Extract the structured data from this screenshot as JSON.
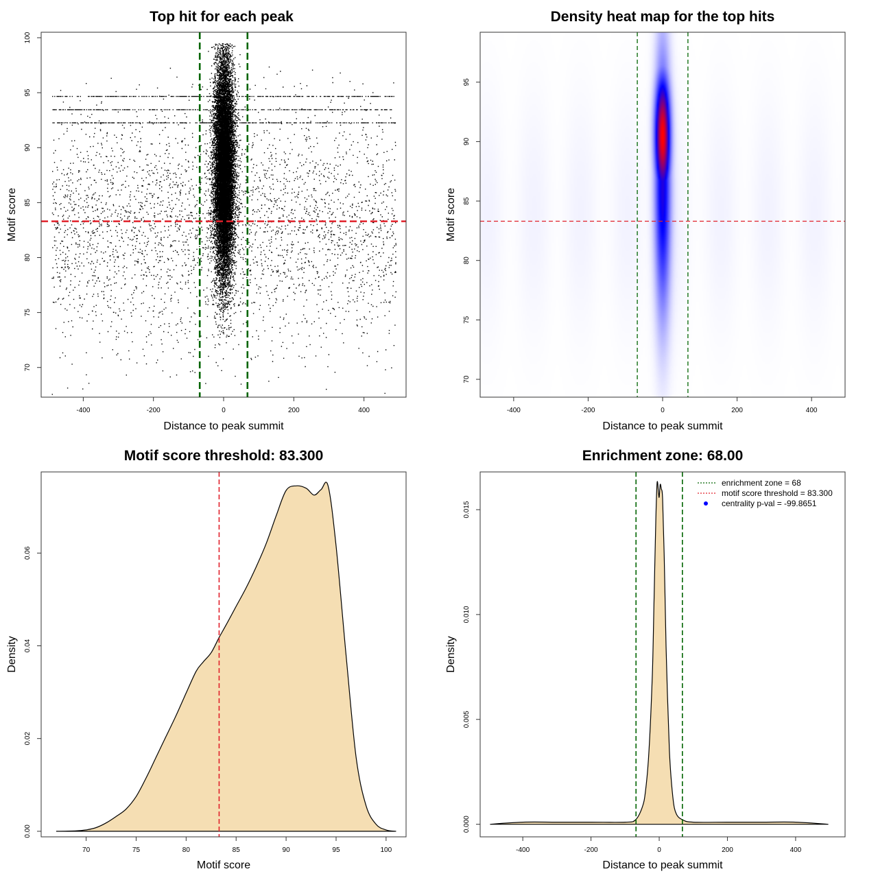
{
  "colors": {
    "points": "#000000",
    "enrichment_line": "#006400",
    "threshold_line": "#e0202a",
    "density_fill": "#f5deb3",
    "density_line": "#000000",
    "heat_low": "#ffffff",
    "heat_mid": "#0000ff",
    "heat_high": "#ff0000",
    "legend_point": "#0000ff"
  },
  "chart_data": [
    {
      "type": "scatter",
      "title": "Top hit for each peak",
      "xlabel": "Distance to peak summit",
      "ylabel": "Motif score",
      "xlim": [
        -520,
        520
      ],
      "ylim": [
        67.3,
        100.5
      ],
      "xticks": [
        -400,
        -200,
        0,
        200,
        400
      ],
      "yticks": [
        70,
        75,
        80,
        85,
        90,
        95,
        100
      ],
      "vlines": [
        -68,
        68
      ],
      "hline": 83.3,
      "point_cloud": {
        "background": {
          "count": 4200,
          "x_range": [
            -490,
            490
          ],
          "score_mean": 83,
          "score_sd": 5.5,
          "score_range": [
            67,
            97.5
          ]
        },
        "central": {
          "count": 16000,
          "x_mean": 0,
          "x_sd": 14,
          "score_mean": 88,
          "score_sd": 5,
          "score_range": [
            72,
            99.5
          ]
        },
        "repeated_score_rows": [
          93.5,
          92.3,
          94.7
        ]
      },
      "grid": false
    },
    {
      "type": "heatmap",
      "title": "Density heat map for the top hits",
      "xlabel": "Distance to peak summit",
      "ylabel": "Motif score",
      "xlim": [
        -490,
        490
      ],
      "ylim": [
        68.5,
        99.2
      ],
      "xticks": [
        -400,
        -200,
        0,
        200,
        400
      ],
      "yticks": [
        70,
        75,
        80,
        85,
        90,
        95
      ],
      "vlines": [
        -68,
        68
      ],
      "hline": 83.3,
      "hotspot": {
        "x_center": 0,
        "x_sd": 14,
        "score_center": 90.5,
        "score_sd": 3.5
      },
      "color_scale": [
        "white",
        "blue",
        "red"
      ]
    },
    {
      "type": "area",
      "title": "Motif score threshold: 83.300",
      "xlabel": "Motif score",
      "ylabel": "Density",
      "xlim": [
        65.5,
        102
      ],
      "ylim": [
        -0.0012,
        0.0775
      ],
      "xticks": [
        70,
        75,
        80,
        85,
        90,
        95,
        100
      ],
      "yticks": [
        0.0,
        0.02,
        0.04,
        0.06
      ],
      "ytick_labels": [
        "0.00",
        "0.02",
        "0.04",
        "0.06"
      ],
      "vline": 83.3,
      "x": [
        67,
        69,
        70,
        71,
        72,
        73,
        74,
        75,
        76,
        77,
        78,
        79,
        80,
        81,
        81.7,
        82.5,
        83.3,
        84,
        85,
        86,
        87,
        88,
        89,
        90,
        91,
        92,
        92.8,
        93.5,
        94.2,
        95,
        96,
        97,
        98,
        99,
        100,
        101
      ],
      "y": [
        0.0,
        0.0001,
        0.0003,
        0.0008,
        0.0018,
        0.0032,
        0.0048,
        0.0075,
        0.0115,
        0.016,
        0.0205,
        0.025,
        0.0298,
        0.0345,
        0.0365,
        0.0385,
        0.0418,
        0.0445,
        0.0485,
        0.0525,
        0.057,
        0.062,
        0.068,
        0.0735,
        0.0745,
        0.074,
        0.0725,
        0.0737,
        0.0745,
        0.0615,
        0.038,
        0.016,
        0.0055,
        0.0015,
        0.0003,
        0.0
      ]
    },
    {
      "type": "area",
      "title": "Enrichment zone: 68.00",
      "xlabel": "Distance to peak summit",
      "ylabel": "Density",
      "xlim": [
        -525,
        545
      ],
      "ylim": [
        -0.0006,
        0.0168
      ],
      "xticks": [
        -400,
        -200,
        0,
        200,
        400
      ],
      "yticks": [
        0.0,
        0.005,
        0.01,
        0.015
      ],
      "ytick_labels": [
        "0.000",
        "0.005",
        "0.010",
        "0.015"
      ],
      "vlines": [
        -68,
        68
      ],
      "x": [
        -496,
        -400,
        -300,
        -200,
        -100,
        -70,
        -50,
        -40,
        -30,
        -20,
        -15,
        -10,
        -6,
        -2,
        0,
        3,
        6,
        10,
        15,
        20,
        30,
        40,
        50,
        70,
        100,
        200,
        300,
        400,
        496
      ],
      "y": [
        0.0,
        0.0001,
        0.0001,
        0.0001,
        0.0001,
        0.0002,
        0.0008,
        0.0016,
        0.0035,
        0.0072,
        0.0108,
        0.0145,
        0.0163,
        0.0158,
        0.0156,
        0.0162,
        0.016,
        0.0155,
        0.0125,
        0.0085,
        0.0035,
        0.0013,
        0.0005,
        0.0002,
        0.0001,
        0.0001,
        0.0001,
        0.0001,
        0.0
      ],
      "legend": {
        "position": "top-right",
        "entries": [
          {
            "label": "enrichment zone = 68",
            "style": "dotted-line",
            "color": "#006400"
          },
          {
            "label": "motif score threshold = 83.300",
            "style": "dotted-line",
            "color": "#e0202a"
          },
          {
            "label": "centrality p-val = -99.8651",
            "style": "point",
            "color": "#0000ff"
          }
        ]
      }
    }
  ]
}
